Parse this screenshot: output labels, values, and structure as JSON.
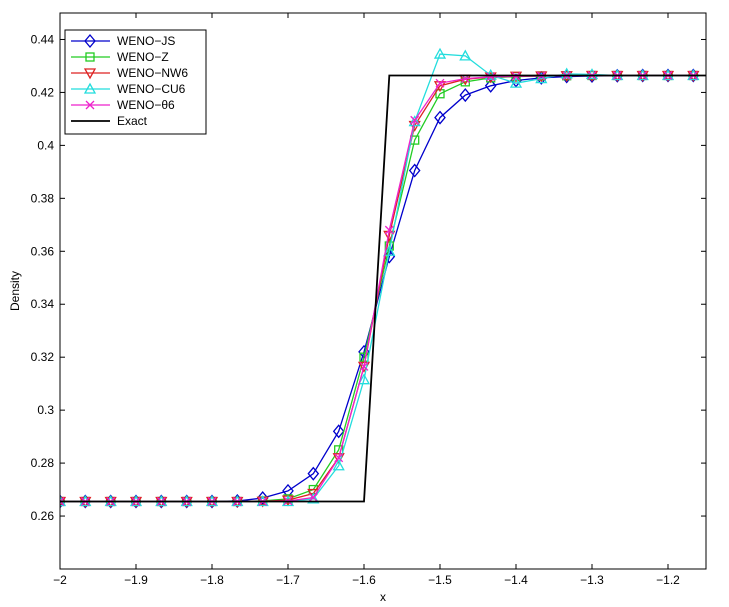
{
  "chart_data": {
    "type": "line",
    "title": "",
    "xlabel": "x",
    "ylabel": "Density",
    "xlim": [
      -2,
      -1.15
    ],
    "ylim": [
      0.24,
      0.45
    ],
    "xticks": [
      -2,
      -1.9,
      -1.8,
      -1.7,
      -1.6,
      -1.5,
      -1.4,
      -1.3,
      -1.2
    ],
    "xtick_labels": [
      "−2",
      "−1.9",
      "−1.8",
      "−1.7",
      "−1.6",
      "−1.5",
      "−1.4",
      "−1.3",
      "−1.2"
    ],
    "yticks": [
      0.26,
      0.28,
      0.3,
      0.32,
      0.34,
      0.36,
      0.38,
      0.4,
      0.42,
      0.44
    ],
    "ytick_labels": [
      "0.26",
      "0.28",
      "0.3",
      "0.32",
      "0.34",
      "0.36",
      "0.38",
      "0.4",
      "0.42",
      "0.44"
    ],
    "grid": false,
    "legend_position": "top-left",
    "x": [
      -2.0,
      -1.9667,
      -1.9333,
      -1.9,
      -1.8667,
      -1.8333,
      -1.8,
      -1.7667,
      -1.7333,
      -1.7,
      -1.6667,
      -1.6333,
      -1.6,
      -1.5667,
      -1.5333,
      -1.5,
      -1.4667,
      -1.4333,
      -1.4,
      -1.3667,
      -1.3333,
      -1.3,
      -1.2667,
      -1.2333,
      -1.2,
      -1.1667
    ],
    "series": [
      {
        "name": "WENO−JS",
        "color": "#0000cc",
        "marker": "diamond",
        "values": [
          0.2655,
          0.2655,
          0.2655,
          0.2655,
          0.2655,
          0.2655,
          0.2655,
          0.2657,
          0.2668,
          0.2695,
          0.276,
          0.292,
          0.322,
          0.358,
          0.3905,
          0.4105,
          0.419,
          0.4225,
          0.4245,
          0.4255,
          0.426,
          0.4262,
          0.4263,
          0.4264,
          0.4264,
          0.4264
        ]
      },
      {
        "name": "WENO−Z",
        "color": "#22cc22",
        "marker": "square",
        "values": [
          0.2655,
          0.2655,
          0.2655,
          0.2655,
          0.2655,
          0.2655,
          0.2655,
          0.2655,
          0.2657,
          0.2665,
          0.27,
          0.285,
          0.32,
          0.362,
          0.402,
          0.4195,
          0.424,
          0.4255,
          0.426,
          0.4262,
          0.4263,
          0.4264,
          0.4264,
          0.4264,
          0.4264,
          0.4264
        ]
      },
      {
        "name": "WENO−NW6",
        "color": "#dd2222",
        "marker": "triangle-down",
        "values": [
          0.2655,
          0.2655,
          0.2655,
          0.2655,
          0.2655,
          0.2655,
          0.2655,
          0.2655,
          0.2656,
          0.266,
          0.2685,
          0.282,
          0.3165,
          0.366,
          0.4075,
          0.4225,
          0.425,
          0.4258,
          0.4261,
          0.4262,
          0.4263,
          0.4264,
          0.4264,
          0.4264,
          0.4264,
          0.4264
        ]
      },
      {
        "name": "WENO−CU6",
        "color": "#22dddd",
        "marker": "triangle-up",
        "values": [
          0.2655,
          0.2655,
          0.2655,
          0.2655,
          0.2655,
          0.2655,
          0.2655,
          0.2655,
          0.2655,
          0.2655,
          0.2665,
          0.279,
          0.3115,
          0.36,
          0.409,
          0.4345,
          0.4338,
          0.4265,
          0.4235,
          0.4252,
          0.427,
          0.4268,
          0.4264,
          0.4264,
          0.4264,
          0.4264
        ]
      },
      {
        "name": "WENO−θ6",
        "color": "#ee22cc",
        "marker": "x",
        "values": [
          0.2655,
          0.2655,
          0.2655,
          0.2655,
          0.2655,
          0.2655,
          0.2655,
          0.2655,
          0.2655,
          0.2657,
          0.267,
          0.282,
          0.3165,
          0.368,
          0.4095,
          0.4235,
          0.4252,
          0.4259,
          0.4261,
          0.4262,
          0.4263,
          0.4264,
          0.4264,
          0.4264,
          0.4264,
          0.4264
        ]
      },
      {
        "name": "Exact",
        "color": "#000000",
        "marker": "none",
        "x": [
          -2.0,
          -1.6,
          -1.5667,
          -1.15
        ],
        "values": [
          0.2655,
          0.2655,
          0.4264,
          0.4264
        ]
      }
    ]
  }
}
